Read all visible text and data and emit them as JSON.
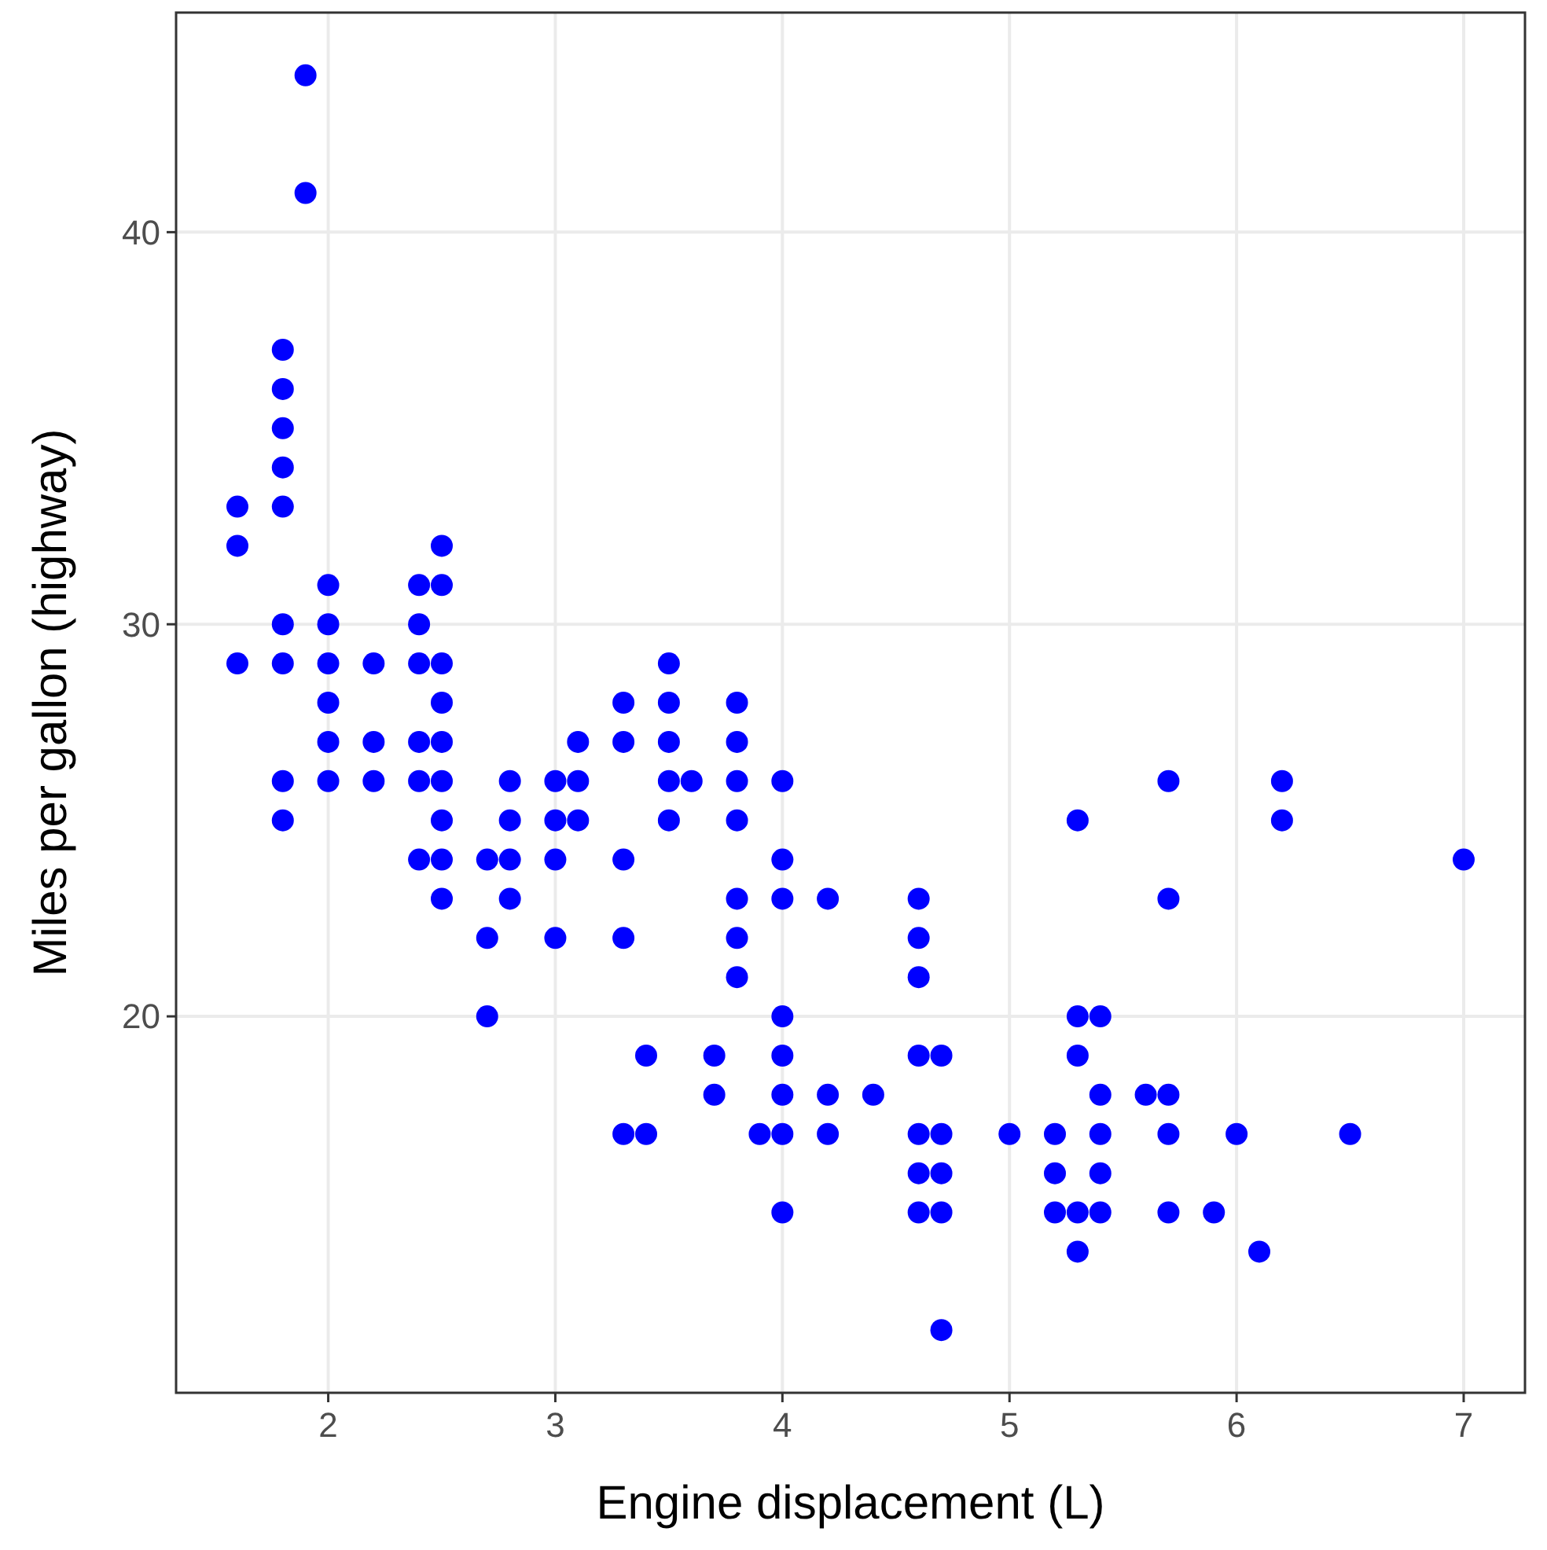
{
  "chart_data": {
    "type": "scatter",
    "xlabel": "Engine displacement (L)",
    "ylabel": "Miles per gallon (highway)",
    "xlim": [
      1.33,
      7.27
    ],
    "ylim": [
      10.4,
      45.6
    ],
    "xticks": [
      2,
      3,
      4,
      5,
      6,
      7
    ],
    "yticks": [
      20,
      30,
      40
    ],
    "grid": true,
    "marker": "circle",
    "series": [
      {
        "color": "#0000ff",
        "x": [
          1.6,
          1.6,
          1.6,
          1.8,
          1.8,
          1.8,
          1.8,
          1.8,
          1.8,
          1.8,
          1.8,
          1.8,
          1.9,
          1.9,
          2.0,
          2.0,
          2.0,
          2.0,
          2.0,
          2.0,
          2.2,
          2.2,
          2.2,
          2.4,
          2.4,
          2.4,
          2.4,
          2.4,
          2.4,
          2.5,
          2.5,
          2.5,
          2.5,
          2.5,
          2.5,
          2.5,
          2.5,
          2.5,
          2.7,
          2.7,
          2.7,
          2.8,
          2.8,
          2.8,
          2.8,
          3.0,
          3.0,
          3.0,
          3.0,
          3.1,
          3.1,
          3.1,
          3.3,
          3.3,
          3.3,
          3.3,
          3.3,
          3.4,
          3.4,
          3.5,
          3.5,
          3.5,
          3.5,
          3.5,
          3.6,
          3.7,
          3.7,
          3.8,
          3.8,
          3.8,
          3.8,
          3.8,
          3.8,
          3.8,
          3.9,
          4.0,
          4.0,
          4.0,
          4.0,
          4.0,
          4.0,
          4.0,
          4.0,
          4.2,
          4.2,
          4.2,
          4.4,
          4.6,
          4.6,
          4.6,
          4.6,
          4.6,
          4.6,
          4.6,
          4.7,
          4.7,
          4.7,
          4.7,
          4.7,
          5.0,
          5.2,
          5.2,
          5.2,
          5.3,
          5.3,
          5.3,
          5.3,
          5.3,
          5.4,
          5.4,
          5.4,
          5.4,
          5.4,
          5.6,
          5.7,
          5.7,
          5.7,
          5.7,
          5.7,
          5.9,
          6.0,
          6.1,
          6.2,
          6.2,
          6.5,
          7.0
        ],
        "values": [
          33,
          32,
          29,
          37,
          36,
          35,
          34,
          33,
          30,
          29,
          26,
          25,
          44,
          41,
          31,
          30,
          29,
          28,
          27,
          26,
          29,
          27,
          26,
          31,
          30,
          29,
          27,
          26,
          24,
          32,
          31,
          29,
          28,
          27,
          26,
          25,
          24,
          23,
          24,
          22,
          20,
          26,
          25,
          24,
          23,
          26,
          25,
          24,
          22,
          27,
          26,
          25,
          28,
          27,
          24,
          22,
          17,
          19,
          17,
          29,
          28,
          27,
          26,
          25,
          26,
          19,
          18,
          28,
          27,
          26,
          25,
          23,
          22,
          21,
          17,
          26,
          24,
          23,
          20,
          19,
          18,
          17,
          15,
          23,
          18,
          17,
          18,
          23,
          22,
          21,
          19,
          17,
          16,
          15,
          19,
          17,
          16,
          15,
          12,
          17,
          17,
          16,
          15,
          25,
          20,
          19,
          15,
          14,
          20,
          18,
          17,
          16,
          15,
          18,
          26,
          23,
          18,
          17,
          15,
          15,
          17,
          14,
          26,
          25,
          17,
          24
        ]
      }
    ]
  }
}
